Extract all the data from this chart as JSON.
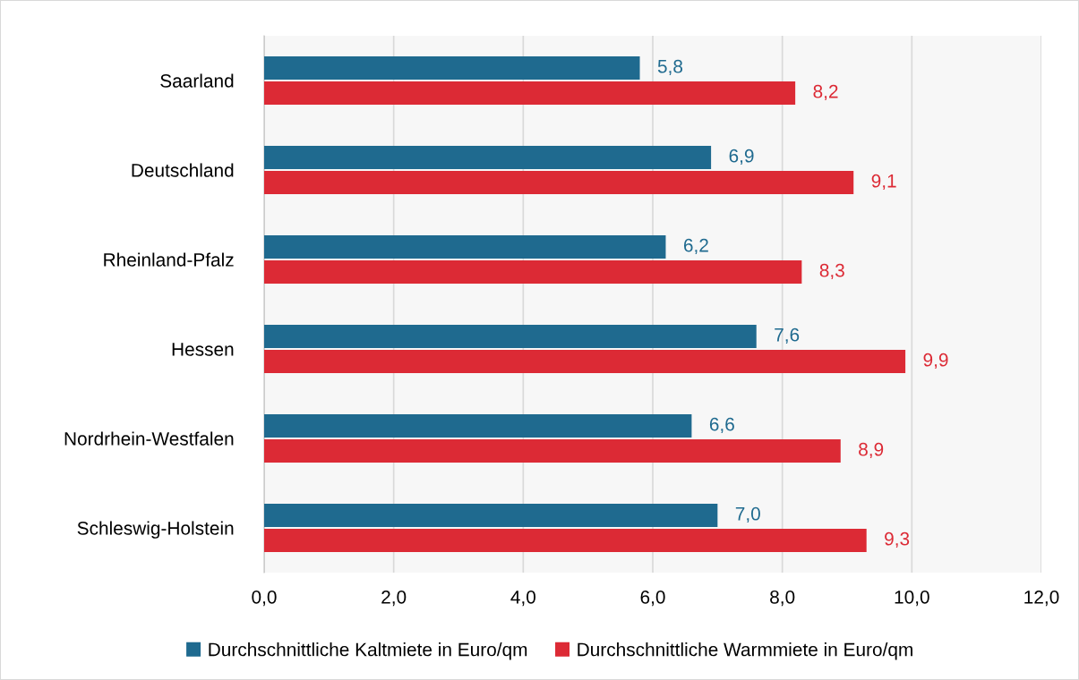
{
  "chart_data": {
    "type": "bar",
    "orientation": "horizontal",
    "categories": [
      "Saarland",
      "Deutschland",
      "Rheinland-Pfalz",
      "Hessen",
      "Nordrhein-Westfalen",
      "Schleswig-Holstein"
    ],
    "series": [
      {
        "name": "Durchschnittliche Kaltmiete in Euro/qm",
        "color": "#1f6a8f",
        "values": [
          5.8,
          6.9,
          6.2,
          7.6,
          6.6,
          7.0
        ],
        "value_labels": [
          "5,8",
          "6,9",
          "6,2",
          "7,6",
          "6,6",
          "7,0"
        ]
      },
      {
        "name": "Durchschnittliche Warmmiete in Euro/qm",
        "color": "#dc2a35",
        "values": [
          8.2,
          9.1,
          8.3,
          9.9,
          8.9,
          9.3
        ],
        "value_labels": [
          "8,2",
          "9,1",
          "8,3",
          "9,9",
          "8,9",
          "9,3"
        ]
      }
    ],
    "xlim": [
      0,
      12
    ],
    "xticks": [
      {
        "value": 0,
        "label": "0,0"
      },
      {
        "value": 2,
        "label": "2,0"
      },
      {
        "value": 4,
        "label": "4,0"
      },
      {
        "value": 6,
        "label": "6,0"
      },
      {
        "value": 8,
        "label": "8,0"
      },
      {
        "value": 10,
        "label": "10,0"
      },
      {
        "value": 12,
        "label": "12,0"
      }
    ],
    "grid": "x",
    "legend": "bottom"
  }
}
